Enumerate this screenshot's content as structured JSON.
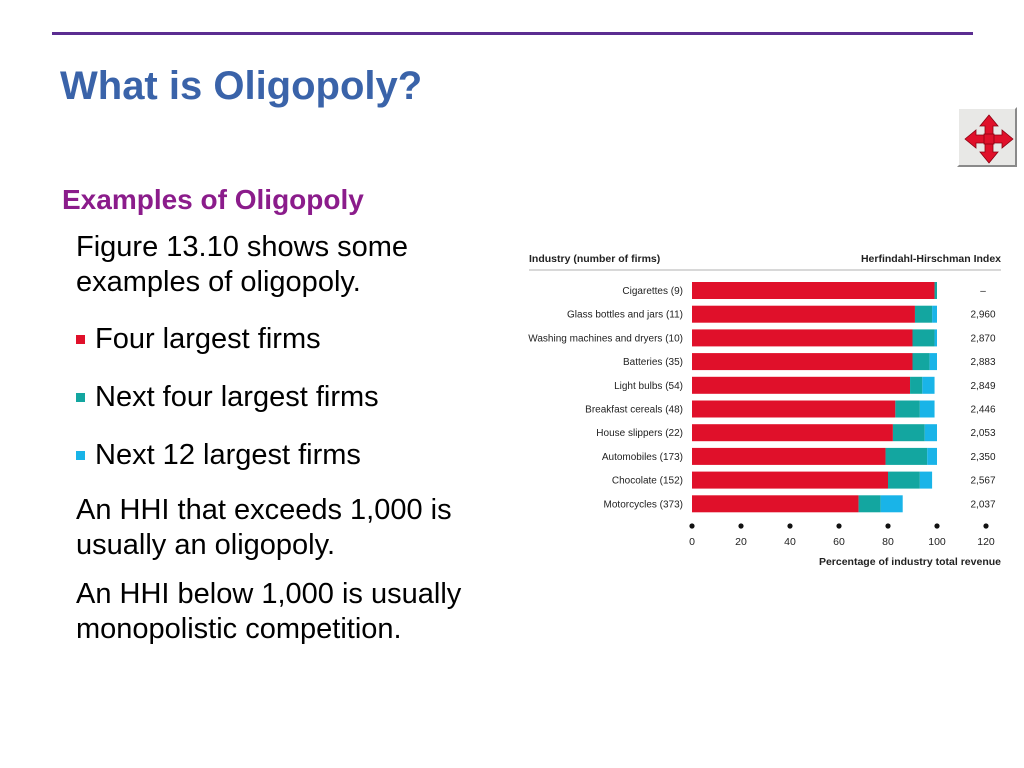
{
  "slide": {
    "title": "What is Oligopoly?",
    "subtitle": "Examples of Oligopoly",
    "intro": "Figure 13.10 shows some examples of oligopoly.",
    "bullets": [
      {
        "label": "Four largest firms",
        "color": "#e0102a"
      },
      {
        "label": "Next four largest firms",
        "color": "#13a6a0"
      },
      {
        "label": "Next 12 largest firms",
        "color": "#19b4e8"
      }
    ],
    "paragraph_1": "An HHI that exceeds 1,000 is usually an oligopoly.",
    "paragraph_2": "An HHI below 1,000 is usually monopolistic competition."
  },
  "colors": {
    "title": "#3a63a9",
    "subtitle": "#8b1c8b",
    "rule": "#5b2d91",
    "four_largest": "#e0102a",
    "next_four": "#13a6a0",
    "next_twelve": "#19b4e8"
  },
  "nav": {
    "icon": "four-way-arrows-icon"
  },
  "chart_data": {
    "type": "bar",
    "orientation": "horizontal",
    "stacked": true,
    "left_header": "Industry (number of firms)",
    "right_header": "Herfindahl-Hirschman Index",
    "xlabel": "Percentage of industry total revenue",
    "xlim": [
      0,
      120
    ],
    "xticks": [
      "0",
      "20",
      "40",
      "60",
      "80",
      "100",
      "120"
    ],
    "categories": [
      "Cigarettes (9)",
      "Glass bottles and jars (11)",
      "Washing machines and dryers (10)",
      "Batteries (35)",
      "Light bulbs (54)",
      "Breakfast cereals (48)",
      "House slippers (22)",
      "Automobiles (173)",
      "Chocolate (152)",
      "Motorcycles (373)"
    ],
    "series": [
      {
        "key": "four",
        "values": [
          99,
          91,
          90,
          90,
          89,
          83,
          82,
          79,
          80,
          68
        ]
      },
      {
        "key": "next4",
        "values": [
          1,
          7,
          9,
          7,
          5,
          10,
          13,
          17,
          13,
          9
        ]
      },
      {
        "key": "next12",
        "values": [
          0,
          2,
          1,
          3,
          5,
          6,
          5,
          4,
          5,
          9
        ]
      }
    ],
    "hhi": [
      "–",
      "2,960",
      "2,870",
      "2,883",
      "2,849",
      "2,446",
      "2,053",
      "2,350",
      "2,567",
      "2,037"
    ],
    "grid": false
  }
}
